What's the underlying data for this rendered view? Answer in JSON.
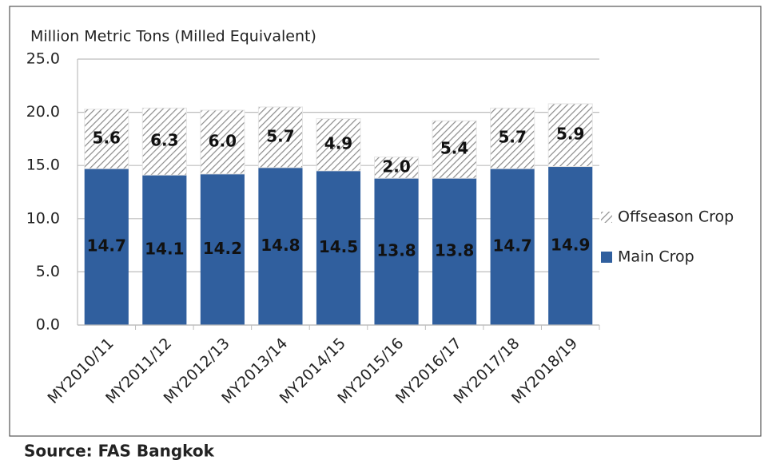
{
  "chart_data": {
    "type": "stacked_bar",
    "y_label": "Million Metric Tons (Milled Equivalent)",
    "source": "Source: FAS Bangkok",
    "categories": [
      "MY2010/11",
      "MY2011/12",
      "MY2012/13",
      "MY2013/14",
      "MY2014/15",
      "MY2015/16",
      "MY2016/17",
      "MY2017/18",
      "MY2018/19"
    ],
    "series": [
      {
        "name": "Main Crop",
        "color": "#305f9e",
        "values": [
          14.7,
          14.1,
          14.2,
          14.8,
          14.5,
          13.8,
          13.8,
          14.7,
          14.9
        ],
        "value_labels": [
          "14.7",
          "14.1",
          "14.2",
          "14.8",
          "14.5",
          "13.8",
          "13.8",
          "14.7",
          "14.9"
        ]
      },
      {
        "name": "Offseason Crop",
        "color": "#8c8c8c",
        "hatch": true,
        "values": [
          5.6,
          6.3,
          6.0,
          5.7,
          4.9,
          2.0,
          5.4,
          5.7,
          5.9
        ],
        "value_labels": [
          "5.6",
          "6.3",
          "6.0",
          "5.7",
          "4.9",
          "2.0",
          "5.4",
          "5.7",
          "5.9"
        ]
      }
    ],
    "ylim": [
      0,
      25
    ],
    "yticks": [
      {
        "value": 0,
        "label": "0.0"
      },
      {
        "value": 5,
        "label": "5.0"
      },
      {
        "value": 10,
        "label": "10.0"
      },
      {
        "value": 15,
        "label": "15.0"
      },
      {
        "value": 20,
        "label": "20.0"
      },
      {
        "value": 25,
        "label": "25.0"
      }
    ],
    "grid": true,
    "legend": "right"
  }
}
